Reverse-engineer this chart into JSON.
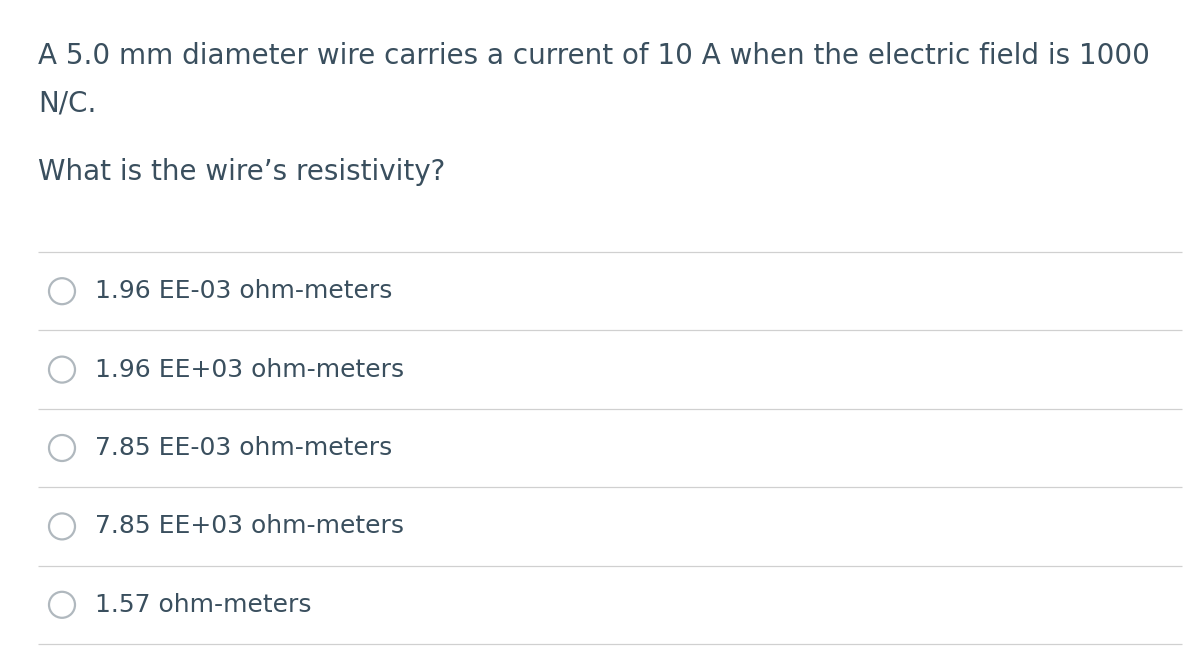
{
  "background_color": "#ffffff",
  "text_color": "#3a4f5e",
  "question_line1": "A 5.0 mm diameter wire carries a current of 10 A when the electric field is 1000",
  "question_line2": "N/C.",
  "sub_question": "What is the wire’s resistivity?",
  "options": [
    "1.96 EE-03 ohm-meters",
    "1.96 EE+03 ohm-meters",
    "7.85 EE-03 ohm-meters",
    "7.85 EE+03 ohm-meters",
    "1.57 ohm-meters"
  ],
  "divider_color": "#d0d0d0",
  "circle_edge_color": "#b0b8be",
  "question_fontsize": 20,
  "sub_question_fontsize": 20,
  "option_fontsize": 18,
  "fig_width": 11.84,
  "fig_height": 6.48,
  "dpi": 100
}
